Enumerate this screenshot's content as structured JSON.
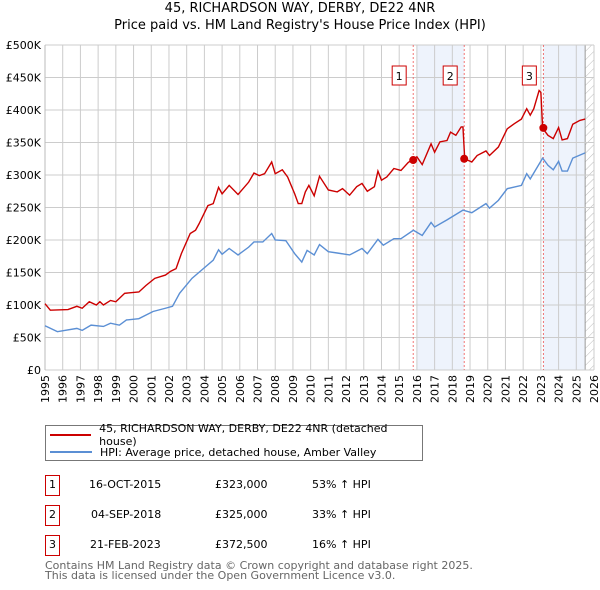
{
  "chart_data": {
    "type": "line",
    "title": "45, RICHARDSON WAY, DERBY, DE22 4NR",
    "subtitle": "Price paid vs. HM Land Registry's House Price Index (HPI)",
    "xlim": [
      1995,
      2026
    ],
    "ylim": [
      0,
      500000
    ],
    "x_ticks": [
      "1995",
      "1996",
      "1997",
      "1998",
      "1999",
      "2000",
      "2001",
      "2002",
      "2003",
      "2004",
      "2005",
      "2006",
      "2007",
      "2008",
      "2009",
      "2010",
      "2011",
      "2012",
      "2013",
      "2014",
      "2015",
      "2016",
      "2017",
      "2018",
      "2019",
      "2020",
      "2021",
      "2022",
      "2023",
      "2024",
      "2025",
      "2026"
    ],
    "y_ticks": [
      {
        "v": 0,
        "l": "£0"
      },
      {
        "v": 50000,
        "l": "£50K"
      },
      {
        "v": 100000,
        "l": "£100K"
      },
      {
        "v": 150000,
        "l": "£150K"
      },
      {
        "v": 200000,
        "l": "£200K"
      },
      {
        "v": 250000,
        "l": "£250K"
      },
      {
        "v": 300000,
        "l": "£300K"
      },
      {
        "v": 350000,
        "l": "£350K"
      },
      {
        "v": 400000,
        "l": "£400K"
      },
      {
        "v": 450000,
        "l": "£450K"
      },
      {
        "v": 500000,
        "l": "£500K"
      }
    ],
    "grid": true,
    "series": [
      {
        "name": "45, RICHARDSON WAY, DERBY, DE22 4NR (detached house)",
        "color": "#cc0000",
        "points": [
          [
            1995.0,
            102
          ],
          [
            1995.3,
            92
          ],
          [
            1996.3,
            93
          ],
          [
            1996.8,
            98
          ],
          [
            1997.1,
            95
          ],
          [
            1997.5,
            105
          ],
          [
            1997.9,
            100
          ],
          [
            1998.1,
            105
          ],
          [
            1998.3,
            100
          ],
          [
            1998.7,
            107
          ],
          [
            1999.0,
            105
          ],
          [
            1999.5,
            118
          ],
          [
            2000.3,
            120
          ],
          [
            2000.7,
            130
          ],
          [
            2001.2,
            141
          ],
          [
            2001.8,
            146
          ],
          [
            2002.1,
            152
          ],
          [
            2002.4,
            156
          ],
          [
            2002.7,
            179
          ],
          [
            2003.2,
            210
          ],
          [
            2003.5,
            215
          ],
          [
            2003.7,
            225
          ],
          [
            2004.2,
            253
          ],
          [
            2004.5,
            256
          ],
          [
            2004.8,
            281
          ],
          [
            2005.0,
            271
          ],
          [
            2005.4,
            284
          ],
          [
            2005.9,
            270
          ],
          [
            2006.5,
            289
          ],
          [
            2006.8,
            303
          ],
          [
            2007.1,
            299
          ],
          [
            2007.4,
            302
          ],
          [
            2007.8,
            320
          ],
          [
            2008.0,
            302
          ],
          [
            2008.4,
            308
          ],
          [
            2008.7,
            297
          ],
          [
            2009.1,
            271
          ],
          [
            2009.3,
            256
          ],
          [
            2009.5,
            256
          ],
          [
            2009.7,
            274
          ],
          [
            2009.9,
            284
          ],
          [
            2010.2,
            268
          ],
          [
            2010.5,
            298
          ],
          [
            2011.0,
            277
          ],
          [
            2011.5,
            274
          ],
          [
            2011.8,
            279
          ],
          [
            2012.2,
            269
          ],
          [
            2012.6,
            282
          ],
          [
            2012.9,
            287
          ],
          [
            2013.2,
            275
          ],
          [
            2013.6,
            282
          ],
          [
            2013.8,
            306
          ],
          [
            2014.0,
            292
          ],
          [
            2014.3,
            297
          ],
          [
            2014.7,
            310
          ],
          [
            2015.1,
            307
          ],
          [
            2015.5,
            319
          ],
          [
            2015.8,
            325
          ],
          [
            2016.0,
            328
          ],
          [
            2016.3,
            316
          ],
          [
            2016.8,
            348
          ],
          [
            2017.0,
            335
          ],
          [
            2017.3,
            351
          ],
          [
            2017.7,
            353
          ],
          [
            2017.9,
            366
          ],
          [
            2018.2,
            361
          ],
          [
            2018.5,
            374
          ],
          [
            2018.6,
            374
          ],
          [
            2018.7,
            325
          ],
          [
            2019.1,
            320
          ],
          [
            2019.4,
            330
          ],
          [
            2019.9,
            337
          ],
          [
            2020.1,
            330
          ],
          [
            2020.6,
            343
          ],
          [
            2021.1,
            371
          ],
          [
            2021.5,
            379
          ],
          [
            2021.9,
            386
          ],
          [
            2022.2,
            402
          ],
          [
            2022.4,
            392
          ],
          [
            2022.6,
            402
          ],
          [
            2022.9,
            430
          ],
          [
            2023.0,
            427
          ],
          [
            2023.1,
            372
          ],
          [
            2023.4,
            361
          ],
          [
            2023.7,
            356
          ],
          [
            2024.0,
            373
          ],
          [
            2024.2,
            354
          ],
          [
            2024.5,
            356
          ],
          [
            2024.8,
            378
          ],
          [
            2025.2,
            384
          ],
          [
            2025.5,
            386
          ]
        ]
      },
      {
        "name": "HPI: Average price, detached house, Amber Valley",
        "color": "#5b8fd4",
        "points": [
          [
            1995.0,
            68
          ],
          [
            1995.7,
            59
          ],
          [
            1996.8,
            64
          ],
          [
            1997.1,
            61
          ],
          [
            1997.6,
            69
          ],
          [
            1998.3,
            67
          ],
          [
            1998.7,
            72
          ],
          [
            1999.2,
            69
          ],
          [
            1999.6,
            77
          ],
          [
            2000.3,
            79
          ],
          [
            2001.1,
            90
          ],
          [
            2001.8,
            95
          ],
          [
            2002.2,
            98
          ],
          [
            2002.6,
            118
          ],
          [
            2003.3,
            141
          ],
          [
            2003.9,
            155
          ],
          [
            2004.5,
            169
          ],
          [
            2004.8,
            185
          ],
          [
            2005.0,
            178
          ],
          [
            2005.4,
            187
          ],
          [
            2005.9,
            177
          ],
          [
            2006.5,
            189
          ],
          [
            2006.8,
            197
          ],
          [
            2007.3,
            197
          ],
          [
            2007.8,
            210
          ],
          [
            2008.0,
            200
          ],
          [
            2008.6,
            199
          ],
          [
            2009.1,
            179
          ],
          [
            2009.5,
            166
          ],
          [
            2009.8,
            184
          ],
          [
            2010.2,
            177
          ],
          [
            2010.5,
            193
          ],
          [
            2011.0,
            182
          ],
          [
            2011.5,
            180
          ],
          [
            2012.2,
            177
          ],
          [
            2012.9,
            187
          ],
          [
            2013.2,
            179
          ],
          [
            2013.8,
            201
          ],
          [
            2014.1,
            192
          ],
          [
            2014.7,
            202
          ],
          [
            2015.1,
            202
          ],
          [
            2015.8,
            215
          ],
          [
            2016.3,
            207
          ],
          [
            2016.8,
            227
          ],
          [
            2017.0,
            220
          ],
          [
            2017.7,
            231
          ],
          [
            2018.6,
            246
          ],
          [
            2019.1,
            242
          ],
          [
            2019.9,
            256
          ],
          [
            2020.1,
            249
          ],
          [
            2020.6,
            261
          ],
          [
            2021.1,
            279
          ],
          [
            2021.9,
            284
          ],
          [
            2022.2,
            302
          ],
          [
            2022.4,
            294
          ],
          [
            2023.1,
            326
          ],
          [
            2023.4,
            315
          ],
          [
            2023.7,
            308
          ],
          [
            2024.0,
            321
          ],
          [
            2024.2,
            306
          ],
          [
            2024.5,
            306
          ],
          [
            2024.8,
            326
          ],
          [
            2025.5,
            334
          ]
        ]
      }
    ],
    "point_units": "thousands GBP",
    "sales": [
      {
        "label": "1",
        "x": 2015.79,
        "y": 323,
        "date": "16-OCT-2015",
        "price": "£323,000",
        "hpi": "53% ↑ HPI"
      },
      {
        "label": "2",
        "x": 2018.67,
        "y": 325,
        "date": "04-SEP-2018",
        "price": "£325,000",
        "hpi": "33% ↑ HPI"
      },
      {
        "label": "3",
        "x": 2023.14,
        "y": 372.5,
        "date": "21-FEB-2023",
        "price": "£372,500",
        "hpi": "16% ↑ HPI"
      }
    ],
    "shaded_ranges": [
      [
        2016.0,
        2018.67
      ],
      [
        2023.14,
        2025.5
      ]
    ],
    "forecast_from": 2025.5,
    "legend_position": "below"
  },
  "footer": [
    "Contains HM Land Registry data © Crown copyright and database right 2025.",
    "This data is licensed under the Open Government Licence v3.0."
  ]
}
